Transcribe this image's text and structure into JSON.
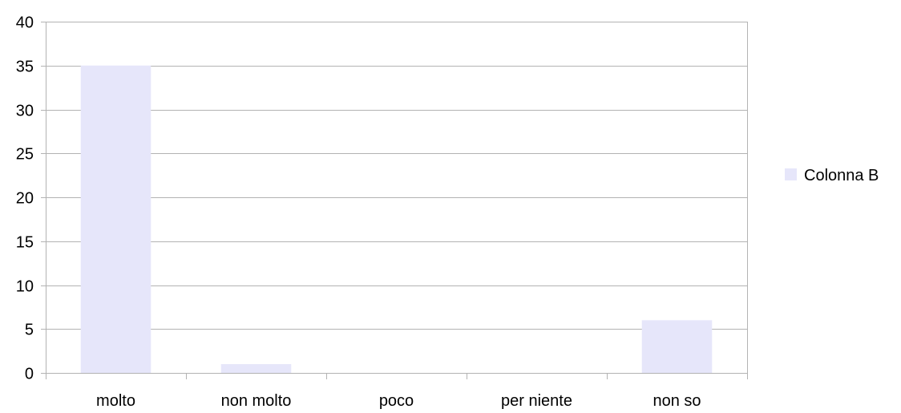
{
  "chart_data": {
    "type": "bar",
    "categories": [
      "molto",
      "non molto",
      "poco",
      "per niente",
      "non so"
    ],
    "series": [
      {
        "name": "Colonna B",
        "values": [
          35,
          1,
          0,
          0,
          6
        ],
        "color": "#e6e6fa"
      }
    ],
    "ylim": [
      0,
      40
    ],
    "yticks": [
      "0",
      "5",
      "10",
      "15",
      "20",
      "25",
      "30",
      "35",
      "40"
    ],
    "grid": true,
    "legend": "right",
    "colors": {
      "gridline": "#b3b3b3",
      "axis": "#b3b3b3"
    }
  }
}
